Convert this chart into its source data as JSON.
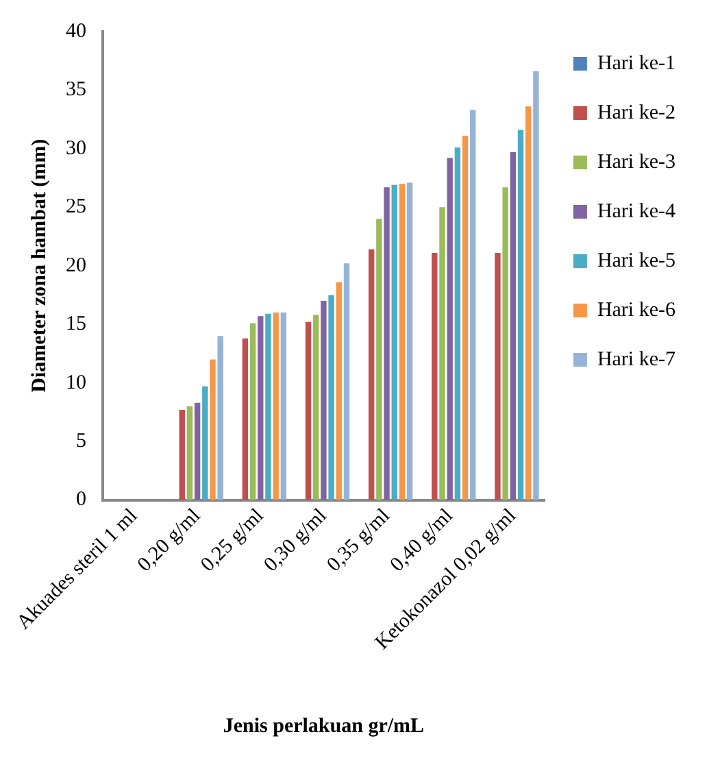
{
  "chart_data": {
    "type": "bar",
    "xlabel": "Jenis perlakuan gr/mL",
    "ylabel": "Diameter zona hambat (mm)",
    "categories": [
      "Akuades steril 1 ml",
      "0,20 g/ml",
      "0,25 g/ml",
      "0,30 g/ml",
      "0,35 g/ml",
      "0,40 g/ml",
      "Ketokonazol 0,02 g/ml"
    ],
    "series": [
      {
        "name": "Hari ke-1",
        "color": "#4f81bd",
        "values": [
          0,
          0,
          0,
          0,
          0,
          0,
          0
        ]
      },
      {
        "name": "Hari ke-2",
        "color": "#c0504d",
        "values": [
          0,
          7.7,
          13.8,
          15.2,
          21.4,
          21.1,
          21.1
        ]
      },
      {
        "name": "Hari ke-3",
        "color": "#9bbb59",
        "values": [
          0,
          8,
          15.1,
          15.8,
          24,
          25,
          26.7
        ]
      },
      {
        "name": "Hari ke-4",
        "color": "#8064a2",
        "values": [
          0,
          8.3,
          15.7,
          17,
          26.7,
          29.2,
          29.7
        ]
      },
      {
        "name": "Hari ke-5",
        "color": "#4bacc6",
        "values": [
          0,
          9.7,
          15.9,
          17.5,
          26.9,
          30.1,
          31.6
        ]
      },
      {
        "name": "Hari ke-6",
        "color": "#f79646",
        "values": [
          0,
          12,
          16,
          18.6,
          27,
          31.1,
          33.6
        ]
      },
      {
        "name": "Hari ke-7",
        "color": "#95b3d7",
        "values": [
          0,
          14,
          16,
          20.2,
          27.1,
          33.3,
          36.6
        ]
      }
    ],
    "ylim": [
      0,
      40
    ],
    "yticks": [
      0,
      5,
      10,
      15,
      20,
      25,
      30,
      35,
      40
    ],
    "grid": false,
    "legend": "right"
  }
}
